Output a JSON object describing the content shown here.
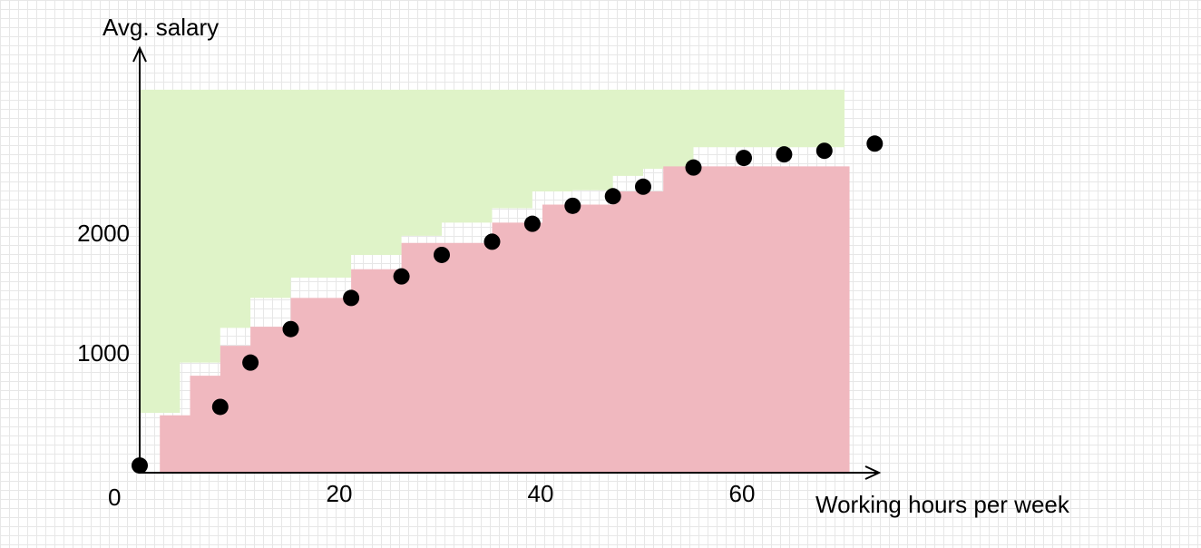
{
  "chart_data": {
    "type": "scatter",
    "ylabel": "Avg. salary",
    "xlabel": "Working hours per week",
    "origin_label": "0",
    "x_ticks": [
      "20",
      "40",
      "60"
    ],
    "y_ticks": [
      "1000",
      "2000"
    ],
    "xlim": [
      0,
      70
    ],
    "ylim": [
      0,
      3200
    ],
    "colors": {
      "upper_area": "#dff3c8",
      "lower_area": "#f0b8bf",
      "points": "#000000",
      "axis": "#000000"
    },
    "points": [
      {
        "x": 0,
        "y": 60
      },
      {
        "x": 8,
        "y": 550
      },
      {
        "x": 11,
        "y": 920
      },
      {
        "x": 15,
        "y": 1200
      },
      {
        "x": 21,
        "y": 1460
      },
      {
        "x": 26,
        "y": 1640
      },
      {
        "x": 30,
        "y": 1820
      },
      {
        "x": 35,
        "y": 1930
      },
      {
        "x": 39,
        "y": 2080
      },
      {
        "x": 43,
        "y": 2230
      },
      {
        "x": 47,
        "y": 2310
      },
      {
        "x": 50,
        "y": 2390
      },
      {
        "x": 55,
        "y": 2550
      },
      {
        "x": 60,
        "y": 2630
      },
      {
        "x": 64,
        "y": 2660
      },
      {
        "x": 68,
        "y": 2690
      },
      {
        "x": 73,
        "y": 2750
      }
    ],
    "upper_area_top": 3200,
    "upper_steps": [
      {
        "x": 0,
        "y": 500
      },
      {
        "x": 4,
        "y": 500
      },
      {
        "x": 4,
        "y": 920
      },
      {
        "x": 8,
        "y": 920
      },
      {
        "x": 8,
        "y": 1210
      },
      {
        "x": 11,
        "y": 1210
      },
      {
        "x": 11,
        "y": 1460
      },
      {
        "x": 15,
        "y": 1460
      },
      {
        "x": 15,
        "y": 1630
      },
      {
        "x": 21,
        "y": 1630
      },
      {
        "x": 21,
        "y": 1820
      },
      {
        "x": 26,
        "y": 1820
      },
      {
        "x": 26,
        "y": 1980
      },
      {
        "x": 30,
        "y": 1980
      },
      {
        "x": 30,
        "y": 2090
      },
      {
        "x": 35,
        "y": 2090
      },
      {
        "x": 35,
        "y": 2210
      },
      {
        "x": 39,
        "y": 2210
      },
      {
        "x": 39,
        "y": 2350
      },
      {
        "x": 43,
        "y": 2350
      },
      {
        "x": 43,
        "y": 2360
      },
      {
        "x": 47,
        "y": 2360
      },
      {
        "x": 47,
        "y": 2480
      },
      {
        "x": 50,
        "y": 2480
      },
      {
        "x": 50,
        "y": 2540
      },
      {
        "x": 55,
        "y": 2540
      },
      {
        "x": 55,
        "y": 2720
      },
      {
        "x": 70,
        "y": 2720
      },
      {
        "x": 70,
        "y": 3200
      }
    ],
    "lower_steps": [
      {
        "x": 2,
        "y": 480
      },
      {
        "x": 5,
        "y": 480
      },
      {
        "x": 5,
        "y": 810
      },
      {
        "x": 8,
        "y": 810
      },
      {
        "x": 8,
        "y": 1060
      },
      {
        "x": 11,
        "y": 1060
      },
      {
        "x": 11,
        "y": 1220
      },
      {
        "x": 15,
        "y": 1220
      },
      {
        "x": 15,
        "y": 1460
      },
      {
        "x": 21,
        "y": 1460
      },
      {
        "x": 21,
        "y": 1700
      },
      {
        "x": 26,
        "y": 1700
      },
      {
        "x": 26,
        "y": 1920
      },
      {
        "x": 35,
        "y": 1920
      },
      {
        "x": 35,
        "y": 2090
      },
      {
        "x": 40,
        "y": 2090
      },
      {
        "x": 40,
        "y": 2240
      },
      {
        "x": 47,
        "y": 2240
      },
      {
        "x": 47,
        "y": 2350
      },
      {
        "x": 52,
        "y": 2350
      },
      {
        "x": 52,
        "y": 2560
      },
      {
        "x": 70.5,
        "y": 2560
      },
      {
        "x": 70.5,
        "y": 0
      }
    ]
  }
}
